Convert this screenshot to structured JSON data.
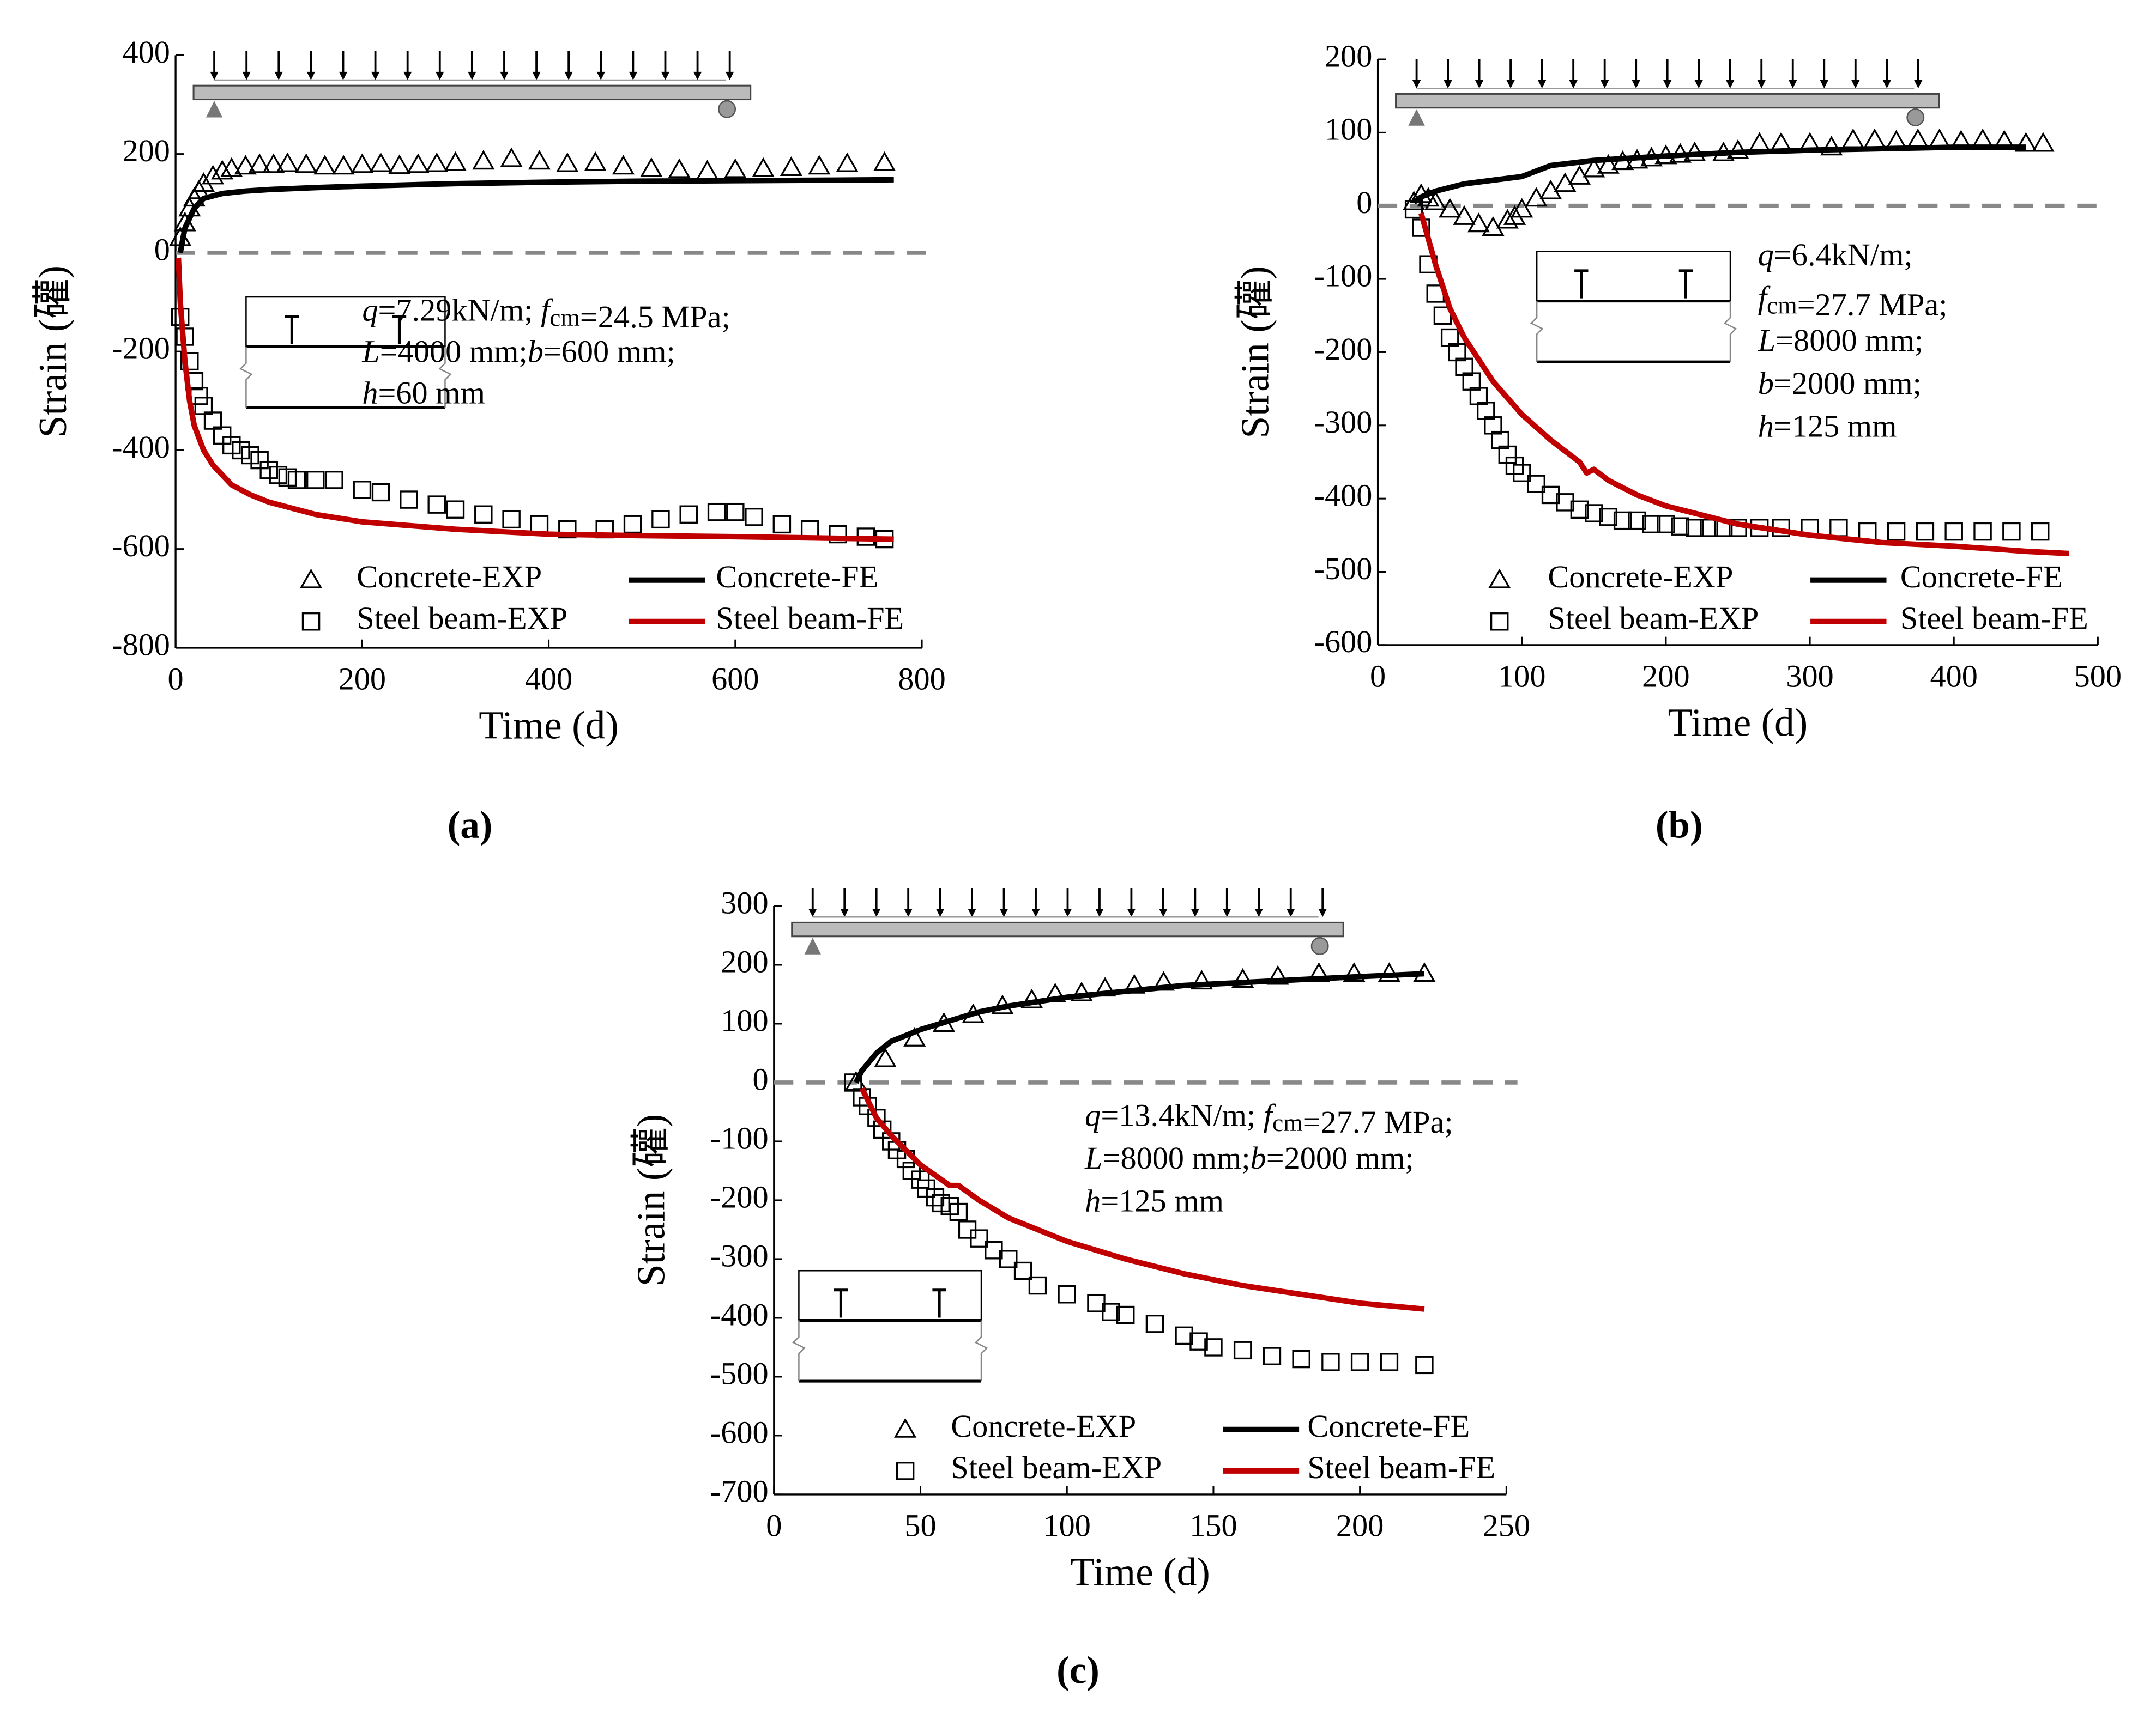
{
  "chart_data": [
    {
      "type": "line",
      "panel": "(a)",
      "xlabel": "Time (d)",
      "ylabel": "Strain (礶)",
      "xlim": [
        0,
        800
      ],
      "xticks": [
        0,
        200,
        400,
        600,
        800
      ],
      "ylim": [
        -800,
        400
      ],
      "yticks": [
        -800,
        -600,
        -400,
        -200,
        0,
        200,
        400
      ],
      "annotation": [
        [
          {
            "i": "q"
          },
          "=7.29kN/m; ",
          {
            "i": "f"
          },
          {
            "sub": "cm"
          },
          "=24.5 MPa;"
        ],
        [
          {
            "i": "L"
          },
          "=4000 mm;",
          {
            "i": "b"
          },
          "=600 mm;"
        ],
        [
          {
            "i": "h"
          },
          "=60 mm"
        ]
      ],
      "series": [
        {
          "name": "Concrete-EXP",
          "color": "#000000",
          "marker": "triangle",
          "x": [
            5,
            10,
            15,
            20,
            25,
            30,
            40,
            50,
            60,
            75,
            90,
            105,
            120,
            140,
            160,
            180,
            200,
            220,
            240,
            260,
            280,
            300,
            330,
            360,
            390,
            420,
            450,
            480,
            510,
            540,
            570,
            600,
            630,
            660,
            690,
            720,
            760
          ],
          "values": [
            30,
            60,
            90,
            110,
            125,
            140,
            155,
            165,
            170,
            175,
            178,
            178,
            180,
            178,
            175,
            175,
            178,
            180,
            176,
            178,
            180,
            182,
            185,
            190,
            185,
            180,
            182,
            175,
            170,
            168,
            165,
            168,
            170,
            172,
            175,
            180,
            182
          ]
        },
        {
          "name": "Concrete-FE",
          "color": "#000000",
          "marker": null,
          "x": [
            5,
            10,
            20,
            30,
            50,
            75,
            100,
            150,
            200,
            300,
            400,
            500,
            600,
            700,
            770
          ],
          "values": [
            0,
            50,
            90,
            110,
            120,
            125,
            128,
            132,
            135,
            140,
            143,
            145,
            146,
            147,
            148
          ]
        },
        {
          "name": "Steel beam-EXP",
          "color": "#000000",
          "marker": "square",
          "x": [
            5,
            10,
            15,
            20,
            25,
            30,
            40,
            50,
            60,
            70,
            80,
            90,
            100,
            110,
            120,
            130,
            150,
            170,
            200,
            220,
            250,
            280,
            300,
            330,
            360,
            390,
            420,
            460,
            490,
            520,
            550,
            580,
            600,
            620,
            650,
            680,
            710,
            740,
            760
          ],
          "values": [
            -130,
            -170,
            -220,
            -260,
            -290,
            -310,
            -340,
            -370,
            -390,
            -400,
            -410,
            -420,
            -440,
            -450,
            -455,
            -460,
            -460,
            -460,
            -480,
            -485,
            -500,
            -510,
            -520,
            -530,
            -540,
            -550,
            -560,
            -560,
            -550,
            -540,
            -530,
            -525,
            -525,
            -535,
            -550,
            -560,
            -570,
            -575,
            -580
          ]
        },
        {
          "name": "Steel beam-FE",
          "color": "#c00000",
          "marker": null,
          "x": [
            3,
            5,
            10,
            15,
            20,
            30,
            40,
            60,
            80,
            100,
            150,
            200,
            300,
            400,
            500,
            600,
            700,
            770
          ],
          "values": [
            -10,
            -100,
            -220,
            -300,
            -350,
            -400,
            -430,
            -470,
            -490,
            -505,
            -530,
            -545,
            -560,
            -570,
            -573,
            -575,
            -578,
            -580
          ]
        }
      ]
    },
    {
      "type": "line",
      "panel": "(b)",
      "xlabel": "Time (d)",
      "ylabel": "Strain (礶)",
      "xlim": [
        0,
        500
      ],
      "xticks": [
        0,
        100,
        200,
        300,
        400,
        500
      ],
      "ylim": [
        -600,
        200
      ],
      "yticks": [
        -600,
        -500,
        -400,
        -300,
        -200,
        -100,
        0,
        100,
        200
      ],
      "annotation": [
        [
          {
            "i": "q"
          },
          "=6.4kN/m;"
        ],
        [
          {
            "i": "f"
          },
          {
            "sub": "cm"
          },
          "=27.7 MPa;"
        ],
        [
          {
            "i": "L"
          },
          "=8000 mm;"
        ],
        [
          {
            "i": "b"
          },
          "=2000 mm;"
        ],
        [
          {
            "i": "h"
          },
          "=125 mm"
        ]
      ],
      "series": [
        {
          "name": "Concrete-EXP",
          "color": "#000000",
          "marker": "triangle",
          "x": [
            25,
            30,
            35,
            40,
            50,
            60,
            70,
            80,
            90,
            95,
            100,
            110,
            120,
            130,
            140,
            150,
            160,
            170,
            180,
            190,
            200,
            210,
            220,
            240,
            250,
            265,
            280,
            300,
            315,
            330,
            345,
            360,
            375,
            390,
            405,
            420,
            435,
            450,
            462
          ],
          "values": [
            5,
            15,
            10,
            5,
            -5,
            -15,
            -25,
            -30,
            -20,
            -15,
            -5,
            10,
            20,
            30,
            40,
            50,
            55,
            60,
            62,
            65,
            68,
            70,
            72,
            72,
            75,
            85,
            85,
            85,
            80,
            90,
            90,
            88,
            90,
            90,
            88,
            90,
            88,
            85,
            85
          ]
        },
        {
          "name": "Concrete-FE",
          "color": "#000000",
          "marker": null,
          "x": [
            25,
            30,
            40,
            60,
            80,
            100,
            120,
            150,
            200,
            250,
            300,
            350,
            400,
            450
          ],
          "values": [
            5,
            12,
            20,
            30,
            35,
            40,
            55,
            62,
            68,
            73,
            76,
            78,
            80,
            80
          ]
        },
        {
          "name": "Steel beam-EXP",
          "color": "#000000",
          "marker": "square",
          "x": [
            25,
            30,
            35,
            40,
            45,
            50,
            55,
            60,
            65,
            70,
            75,
            80,
            85,
            90,
            95,
            100,
            110,
            120,
            130,
            140,
            150,
            160,
            170,
            180,
            190,
            200,
            210,
            220,
            230,
            240,
            250,
            265,
            280,
            300,
            320,
            340,
            360,
            380,
            400,
            420,
            440,
            460
          ],
          "values": [
            -5,
            -30,
            -80,
            -120,
            -150,
            -180,
            -200,
            -220,
            -240,
            -260,
            -280,
            -300,
            -320,
            -340,
            -355,
            -365,
            -380,
            -395,
            -405,
            -415,
            -420,
            -425,
            -430,
            -430,
            -435,
            -435,
            -438,
            -440,
            -440,
            -440,
            -440,
            -440,
            -440,
            -440,
            -440,
            -445,
            -445,
            -445,
            -445,
            -445,
            -445,
            -445
          ]
        },
        {
          "name": "Steel beam-FE",
          "color": "#c00000",
          "marker": null,
          "x": [
            30,
            40,
            50,
            60,
            80,
            100,
            120,
            140,
            145,
            150,
            160,
            180,
            200,
            250,
            300,
            350,
            400,
            450,
            480
          ],
          "values": [
            -10,
            -80,
            -140,
            -180,
            -240,
            -285,
            -320,
            -350,
            -365,
            -360,
            -375,
            -395,
            -410,
            -435,
            -450,
            -460,
            -465,
            -472,
            -475
          ]
        }
      ]
    },
    {
      "type": "line",
      "panel": "(c)",
      "xlabel": "Time (d)",
      "ylabel": "Strain (礶)",
      "xlim": [
        0,
        250
      ],
      "xticks": [
        0,
        50,
        100,
        150,
        200,
        250
      ],
      "ylim": [
        -700,
        300
      ],
      "yticks": [
        -700,
        -600,
        -500,
        -400,
        -300,
        -200,
        -100,
        0,
        100,
        200,
        300
      ],
      "annotation": [
        [
          {
            "i": "q"
          },
          "=13.4kN/m; ",
          {
            "i": "f"
          },
          {
            "sub": "cm"
          },
          "=27.7 MPa;"
        ],
        [
          {
            "i": "L"
          },
          "=8000 mm;",
          {
            "i": "b"
          },
          "=2000 mm;"
        ],
        [
          " ",
          {
            "i": "h"
          },
          "=125 mm"
        ]
      ],
      "series": [
        {
          "name": "Concrete-EXP",
          "color": "#000000",
          "marker": "triangle",
          "x": [
            28,
            38,
            48,
            58,
            68,
            78,
            88,
            96,
            105,
            113,
            123,
            133,
            146,
            160,
            172,
            186,
            198,
            210,
            222
          ],
          "values": [
            0,
            40,
            75,
            100,
            115,
            130,
            140,
            150,
            152,
            160,
            165,
            170,
            172,
            175,
            180,
            185,
            185,
            185,
            185
          ]
        },
        {
          "name": "Concrete-FE",
          "color": "#000000",
          "marker": null,
          "x": [
            28,
            30,
            35,
            40,
            50,
            60,
            70,
            80,
            100,
            120,
            140,
            160,
            180,
            200,
            222
          ],
          "values": [
            0,
            20,
            50,
            70,
            90,
            105,
            120,
            130,
            145,
            155,
            165,
            170,
            175,
            180,
            185
          ]
        },
        {
          "name": "Steel beam-EXP",
          "color": "#000000",
          "marker": "square",
          "x": [
            27,
            30,
            32,
            35,
            37,
            40,
            42,
            45,
            47,
            50,
            52,
            55,
            57,
            60,
            63,
            66,
            70,
            75,
            80,
            85,
            90,
            100,
            110,
            115,
            120,
            130,
            140,
            145,
            150,
            160,
            170,
            180,
            190,
            200,
            210,
            222
          ],
          "values": [
            0,
            -25,
            -40,
            -60,
            -80,
            -100,
            -115,
            -130,
            -150,
            -165,
            -180,
            -195,
            -205,
            -210,
            -220,
            -250,
            -265,
            -285,
            -300,
            -320,
            -345,
            -360,
            -375,
            -390,
            -395,
            -410,
            -430,
            -440,
            -450,
            -455,
            -465,
            -470,
            -475,
            -475,
            -475,
            -480
          ]
        },
        {
          "name": "Steel beam-FE",
          "color": "#c00000",
          "marker": null,
          "x": [
            30,
            35,
            40,
            50,
            60,
            63,
            70,
            80,
            100,
            120,
            140,
            160,
            180,
            200,
            222
          ],
          "values": [
            -10,
            -60,
            -90,
            -140,
            -175,
            -175,
            -200,
            -230,
            -270,
            -300,
            -325,
            -345,
            -360,
            -375,
            -385
          ]
        }
      ]
    }
  ]
}
